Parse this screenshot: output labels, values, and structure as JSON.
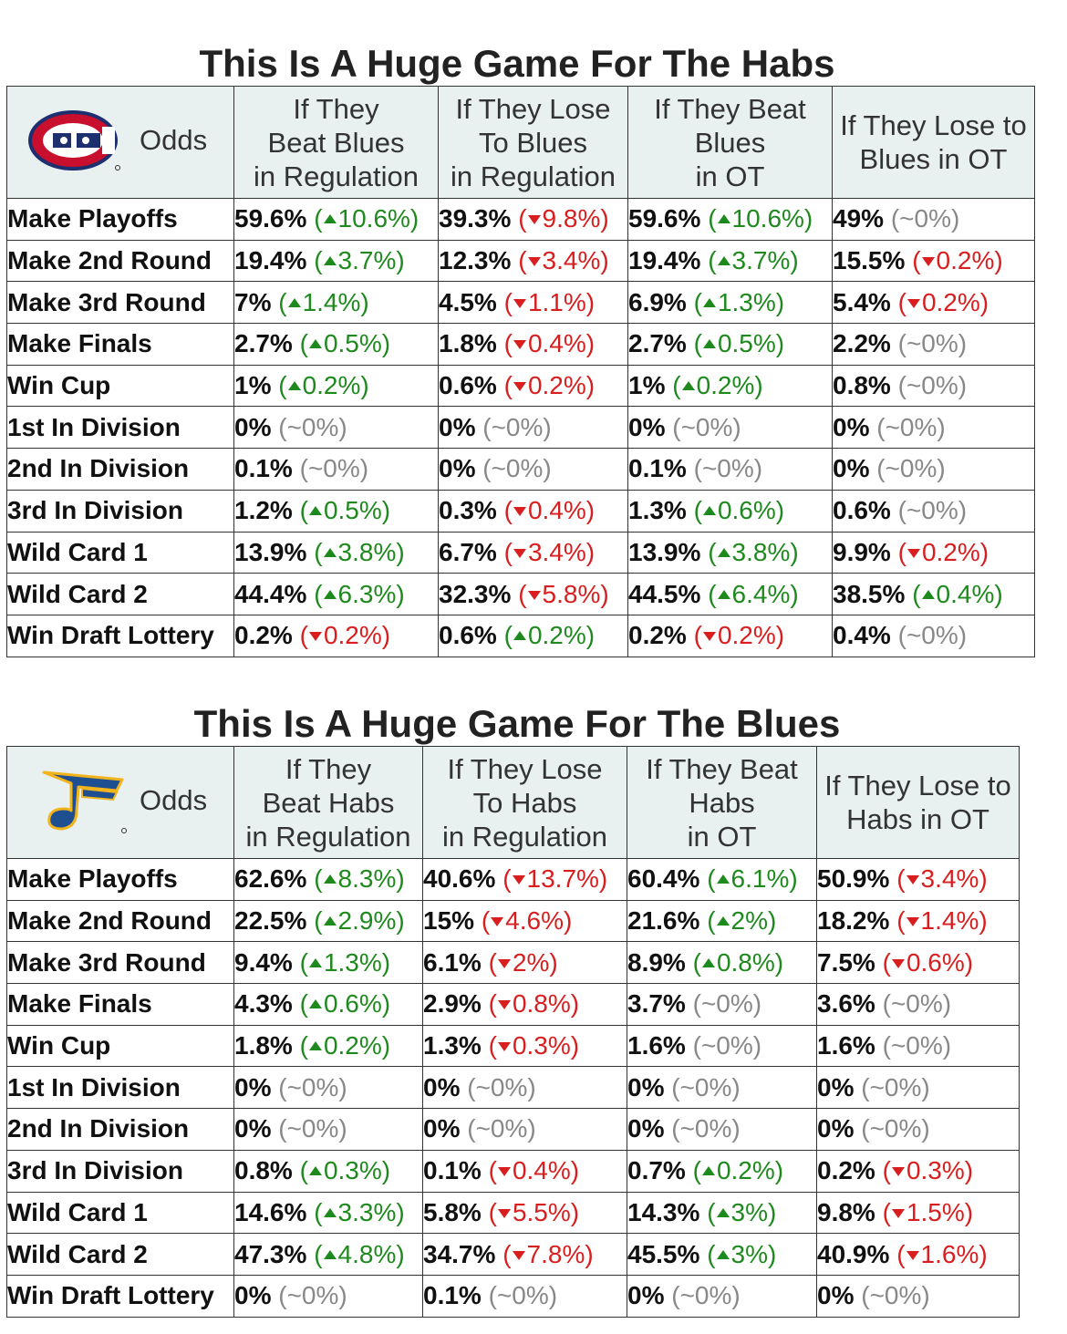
{
  "chart_data": [
    {
      "type": "table",
      "title": "This Is A Huge Game For The Habs",
      "corner_label": "Odds",
      "logo": "canadiens-logo",
      "columns": [
        [
          "If They",
          "Beat Blues",
          "in Regulation"
        ],
        [
          "If They Lose",
          "To Blues",
          "in Regulation"
        ],
        [
          "If They Beat",
          "Blues",
          "in OT"
        ],
        [
          "If They Lose to",
          "Blues in OT"
        ]
      ],
      "rows": [
        {
          "label": "Make Playoffs",
          "cells": [
            {
              "value": "59.6%",
              "dir": "up",
              "change": "10.6%"
            },
            {
              "value": "39.3%",
              "dir": "down",
              "change": "9.8%"
            },
            {
              "value": "59.6%",
              "dir": "up",
              "change": "10.6%"
            },
            {
              "value": "49%",
              "dir": "flat",
              "change": "~0%"
            }
          ]
        },
        {
          "label": "Make 2nd Round",
          "cells": [
            {
              "value": "19.4%",
              "dir": "up",
              "change": "3.7%"
            },
            {
              "value": "12.3%",
              "dir": "down",
              "change": "3.4%"
            },
            {
              "value": "19.4%",
              "dir": "up",
              "change": "3.7%"
            },
            {
              "value": "15.5%",
              "dir": "down",
              "change": "0.2%"
            }
          ]
        },
        {
          "label": "Make 3rd Round",
          "cells": [
            {
              "value": "7%",
              "dir": "up",
              "change": "1.4%"
            },
            {
              "value": "4.5%",
              "dir": "down",
              "change": "1.1%"
            },
            {
              "value": "6.9%",
              "dir": "up",
              "change": "1.3%"
            },
            {
              "value": "5.4%",
              "dir": "down",
              "change": "0.2%"
            }
          ]
        },
        {
          "label": "Make Finals",
          "cells": [
            {
              "value": "2.7%",
              "dir": "up",
              "change": "0.5%"
            },
            {
              "value": "1.8%",
              "dir": "down",
              "change": "0.4%"
            },
            {
              "value": "2.7%",
              "dir": "up",
              "change": "0.5%"
            },
            {
              "value": "2.2%",
              "dir": "flat",
              "change": "~0%"
            }
          ]
        },
        {
          "label": "Win Cup",
          "cells": [
            {
              "value": "1%",
              "dir": "up",
              "change": "0.2%"
            },
            {
              "value": "0.6%",
              "dir": "down",
              "change": "0.2%"
            },
            {
              "value": "1%",
              "dir": "up",
              "change": "0.2%"
            },
            {
              "value": "0.8%",
              "dir": "flat",
              "change": "~0%"
            }
          ]
        },
        {
          "label": "1st In Division",
          "cells": [
            {
              "value": "0%",
              "dir": "flat",
              "change": "~0%"
            },
            {
              "value": "0%",
              "dir": "flat",
              "change": "~0%"
            },
            {
              "value": "0%",
              "dir": "flat",
              "change": "~0%"
            },
            {
              "value": "0%",
              "dir": "flat",
              "change": "~0%"
            }
          ]
        },
        {
          "label": "2nd In Division",
          "cells": [
            {
              "value": "0.1%",
              "dir": "flat",
              "change": "~0%"
            },
            {
              "value": "0%",
              "dir": "flat",
              "change": "~0%"
            },
            {
              "value": "0.1%",
              "dir": "flat",
              "change": "~0%"
            },
            {
              "value": "0%",
              "dir": "flat",
              "change": "~0%"
            }
          ]
        },
        {
          "label": "3rd In Division",
          "cells": [
            {
              "value": "1.2%",
              "dir": "up",
              "change": "0.5%"
            },
            {
              "value": "0.3%",
              "dir": "down",
              "change": "0.4%"
            },
            {
              "value": "1.3%",
              "dir": "up",
              "change": "0.6%"
            },
            {
              "value": "0.6%",
              "dir": "flat",
              "change": "~0%"
            }
          ]
        },
        {
          "label": "Wild Card 1",
          "cells": [
            {
              "value": "13.9%",
              "dir": "up",
              "change": "3.8%"
            },
            {
              "value": "6.7%",
              "dir": "down",
              "change": "3.4%"
            },
            {
              "value": "13.9%",
              "dir": "up",
              "change": "3.8%"
            },
            {
              "value": "9.9%",
              "dir": "down",
              "change": "0.2%"
            }
          ]
        },
        {
          "label": "Wild Card 2",
          "cells": [
            {
              "value": "44.4%",
              "dir": "up",
              "change": "6.3%"
            },
            {
              "value": "32.3%",
              "dir": "down",
              "change": "5.8%"
            },
            {
              "value": "44.5%",
              "dir": "up",
              "change": "6.4%"
            },
            {
              "value": "38.5%",
              "dir": "up",
              "change": "0.4%"
            }
          ]
        },
        {
          "label": "Win Draft Lottery",
          "cells": [
            {
              "value": "0.2%",
              "dir": "down",
              "change": "0.2%"
            },
            {
              "value": "0.6%",
              "dir": "up",
              "change": "0.2%"
            },
            {
              "value": "0.2%",
              "dir": "down",
              "change": "0.2%"
            },
            {
              "value": "0.4%",
              "dir": "flat",
              "change": "~0%"
            }
          ]
        }
      ]
    },
    {
      "type": "table",
      "title": "This Is A Huge Game For The Blues",
      "corner_label": "Odds",
      "logo": "blues-logo",
      "columns": [
        [
          "If They",
          "Beat Habs",
          "in Regulation"
        ],
        [
          "If They Lose",
          "To Habs",
          "in Regulation"
        ],
        [
          "If They Beat",
          "Habs",
          "in OT"
        ],
        [
          "If They Lose to",
          "Habs in OT"
        ]
      ],
      "rows": [
        {
          "label": "Make Playoffs",
          "cells": [
            {
              "value": "62.6%",
              "dir": "up",
              "change": "8.3%"
            },
            {
              "value": "40.6%",
              "dir": "down",
              "change": "13.7%"
            },
            {
              "value": "60.4%",
              "dir": "up",
              "change": "6.1%"
            },
            {
              "value": "50.9%",
              "dir": "down",
              "change": "3.4%"
            }
          ]
        },
        {
          "label": "Make 2nd Round",
          "cells": [
            {
              "value": "22.5%",
              "dir": "up",
              "change": "2.9%"
            },
            {
              "value": "15%",
              "dir": "down",
              "change": "4.6%"
            },
            {
              "value": "21.6%",
              "dir": "up",
              "change": "2%"
            },
            {
              "value": "18.2%",
              "dir": "down",
              "change": "1.4%"
            }
          ]
        },
        {
          "label": "Make 3rd Round",
          "cells": [
            {
              "value": "9.4%",
              "dir": "up",
              "change": "1.3%"
            },
            {
              "value": "6.1%",
              "dir": "down",
              "change": "2%"
            },
            {
              "value": "8.9%",
              "dir": "up",
              "change": "0.8%"
            },
            {
              "value": "7.5%",
              "dir": "down",
              "change": "0.6%"
            }
          ]
        },
        {
          "label": "Make Finals",
          "cells": [
            {
              "value": "4.3%",
              "dir": "up",
              "change": "0.6%"
            },
            {
              "value": "2.9%",
              "dir": "down",
              "change": "0.8%"
            },
            {
              "value": "3.7%",
              "dir": "flat",
              "change": "~0%"
            },
            {
              "value": "3.6%",
              "dir": "flat",
              "change": "~0%"
            }
          ]
        },
        {
          "label": "Win Cup",
          "cells": [
            {
              "value": "1.8%",
              "dir": "up",
              "change": "0.2%"
            },
            {
              "value": "1.3%",
              "dir": "down",
              "change": "0.3%"
            },
            {
              "value": "1.6%",
              "dir": "flat",
              "change": "~0%"
            },
            {
              "value": "1.6%",
              "dir": "flat",
              "change": "~0%"
            }
          ]
        },
        {
          "label": "1st In Division",
          "cells": [
            {
              "value": "0%",
              "dir": "flat",
              "change": "~0%"
            },
            {
              "value": "0%",
              "dir": "flat",
              "change": "~0%"
            },
            {
              "value": "0%",
              "dir": "flat",
              "change": "~0%"
            },
            {
              "value": "0%",
              "dir": "flat",
              "change": "~0%"
            }
          ]
        },
        {
          "label": "2nd In Division",
          "cells": [
            {
              "value": "0%",
              "dir": "flat",
              "change": "~0%"
            },
            {
              "value": "0%",
              "dir": "flat",
              "change": "~0%"
            },
            {
              "value": "0%",
              "dir": "flat",
              "change": "~0%"
            },
            {
              "value": "0%",
              "dir": "flat",
              "change": "~0%"
            }
          ]
        },
        {
          "label": "3rd In Division",
          "cells": [
            {
              "value": "0.8%",
              "dir": "up",
              "change": "0.3%"
            },
            {
              "value": "0.1%",
              "dir": "down",
              "change": "0.4%"
            },
            {
              "value": "0.7%",
              "dir": "up",
              "change": "0.2%"
            },
            {
              "value": "0.2%",
              "dir": "down",
              "change": "0.3%"
            }
          ]
        },
        {
          "label": "Wild Card 1",
          "cells": [
            {
              "value": "14.6%",
              "dir": "up",
              "change": "3.3%"
            },
            {
              "value": "5.8%",
              "dir": "down",
              "change": "5.5%"
            },
            {
              "value": "14.3%",
              "dir": "up",
              "change": "3%"
            },
            {
              "value": "9.8%",
              "dir": "down",
              "change": "1.5%"
            }
          ]
        },
        {
          "label": "Wild Card 2",
          "cells": [
            {
              "value": "47.3%",
              "dir": "up",
              "change": "4.8%"
            },
            {
              "value": "34.7%",
              "dir": "down",
              "change": "7.8%"
            },
            {
              "value": "45.5%",
              "dir": "up",
              "change": "3%"
            },
            {
              "value": "40.9%",
              "dir": "down",
              "change": "1.6%"
            }
          ]
        },
        {
          "label": "Win Draft Lottery",
          "cells": [
            {
              "value": "0%",
              "dir": "flat",
              "change": "~0%"
            },
            {
              "value": "0.1%",
              "dir": "flat",
              "change": "~0%"
            },
            {
              "value": "0%",
              "dir": "flat",
              "change": "~0%"
            },
            {
              "value": "0%",
              "dir": "flat",
              "change": "~0%"
            }
          ]
        }
      ]
    }
  ],
  "colors": {
    "up": "#1e8a1e",
    "down": "#d81e1e",
    "flat": "#888888",
    "header_bg": "#e9f0f0"
  }
}
